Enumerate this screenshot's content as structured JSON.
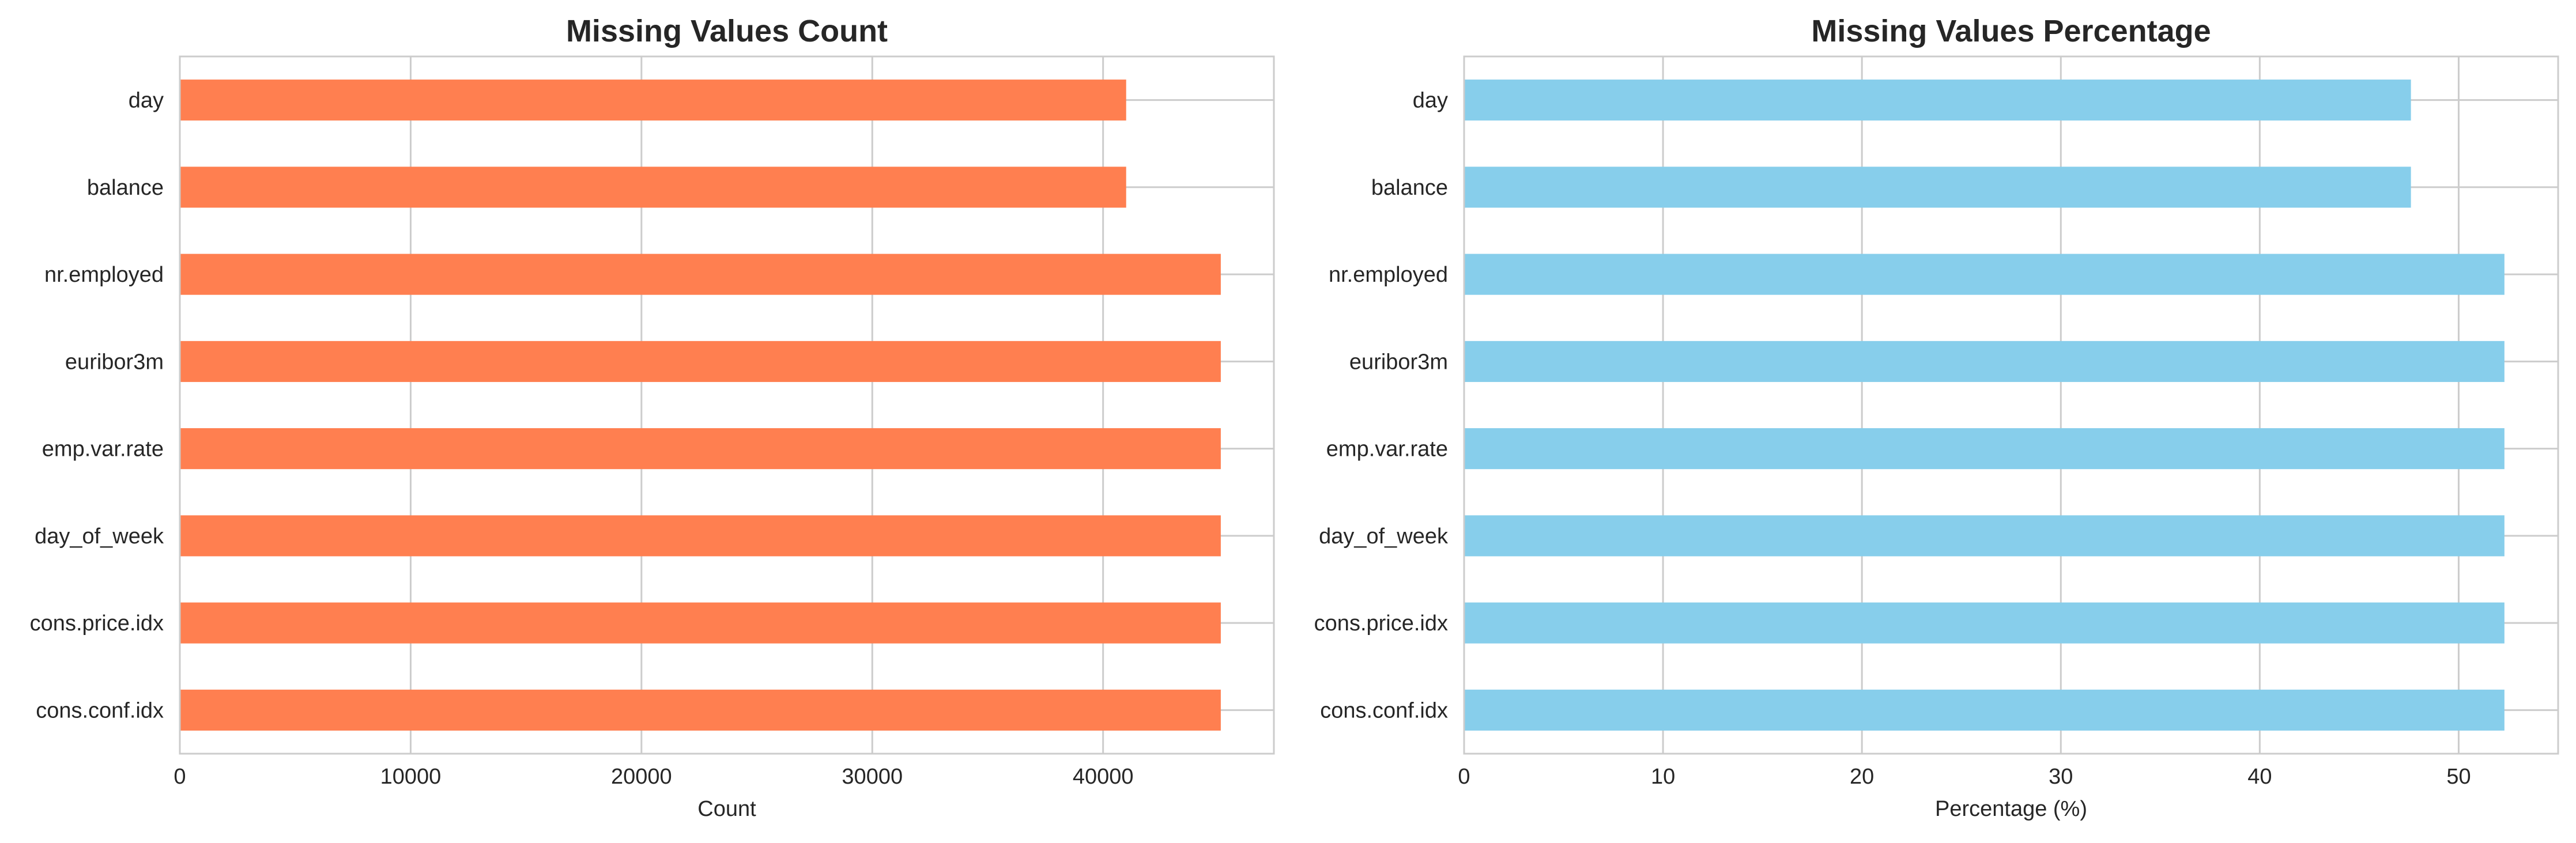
{
  "chart_data": [
    {
      "type": "bar",
      "orientation": "horizontal",
      "title": "Missing Values Count",
      "xlabel": "Count",
      "ylabel": "",
      "categories": [
        "day",
        "balance",
        "nr.employed",
        "euribor3m",
        "emp.var.rate",
        "day_of_week",
        "cons.price.idx",
        "cons.conf.idx"
      ],
      "values": [
        41000,
        41000,
        45100,
        45100,
        45100,
        45100,
        45100,
        45100
      ],
      "xlim": [
        0,
        47400
      ],
      "xticks": [
        0,
        10000,
        20000,
        30000,
        40000
      ],
      "xtick_labels": [
        "0",
        "10000",
        "20000",
        "30000",
        "40000"
      ],
      "color": "#ff7f50",
      "grid": true,
      "legend": "none"
    },
    {
      "type": "bar",
      "orientation": "horizontal",
      "title": "Missing Values Percentage",
      "xlabel": "Percentage (%)",
      "ylabel": "",
      "categories": [
        "day",
        "balance",
        "nr.employed",
        "euribor3m",
        "emp.var.rate",
        "day_of_week",
        "cons.price.idx",
        "cons.conf.idx"
      ],
      "values": [
        47.6,
        47.6,
        52.3,
        52.3,
        52.3,
        52.3,
        52.3,
        52.3
      ],
      "xlim": [
        0,
        55
      ],
      "xticks": [
        0,
        10,
        20,
        30,
        40,
        50
      ],
      "xtick_labels": [
        "0",
        "10",
        "20",
        "30",
        "40",
        "50"
      ],
      "color": "#87ceeb",
      "grid": true,
      "legend": "none"
    }
  ]
}
